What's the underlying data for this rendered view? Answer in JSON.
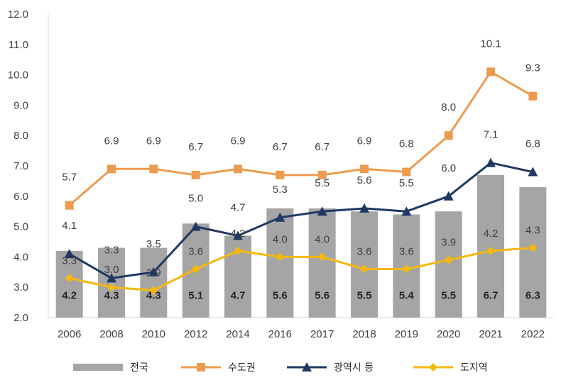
{
  "chart_data": {
    "type": "bar",
    "categories": [
      "2006",
      "2008",
      "2010",
      "2012",
      "2014",
      "2016",
      "2017",
      "2018",
      "2019",
      "2020",
      "2021",
      "2022"
    ],
    "ylim": [
      2.0,
      12.0
    ],
    "y_ticks": [
      "2.0",
      "3.0",
      "4.0",
      "5.0",
      "6.0",
      "7.0",
      "8.0",
      "9.0",
      "10.0",
      "11.0",
      "12.0"
    ],
    "grid": false,
    "legend_position": "bottom",
    "series": [
      {
        "name": "전국",
        "kind": "bar",
        "color": "#A5A5A5",
        "values": [
          4.2,
          4.3,
          4.3,
          5.1,
          4.7,
          5.6,
          5.6,
          5.5,
          5.4,
          5.5,
          6.7,
          6.3
        ],
        "labels": [
          "4.2",
          "4.3",
          "4.3",
          "5.1",
          "4.7",
          "5.6",
          "5.6",
          "5.5",
          "5.4",
          "5.5",
          "6.7",
          "6.3"
        ]
      },
      {
        "name": "수도권",
        "kind": "line",
        "marker": "square",
        "color": "#ED9B4E",
        "values": [
          5.7,
          6.9,
          6.9,
          6.7,
          6.9,
          6.7,
          6.7,
          6.9,
          6.8,
          8.0,
          10.1,
          9.3
        ],
        "labels": [
          "5.7",
          "6.9",
          "6.9",
          "6.7",
          "6.9",
          "6.7",
          "6.7",
          "6.9",
          "6.8",
          "8.0",
          "10.1",
          "9.3"
        ]
      },
      {
        "name": "광역시 등",
        "kind": "line",
        "marker": "triangle",
        "color": "#1F3864",
        "values": [
          4.1,
          3.3,
          3.5,
          5.0,
          4.7,
          5.3,
          5.5,
          5.6,
          5.5,
          6.0,
          7.1,
          6.8
        ],
        "labels": [
          "4.1",
          "3.3",
          "3.5",
          "5.0",
          "4.7",
          "5.3",
          "5.5",
          "5.6",
          "5.5",
          "6.0",
          "7.1",
          "6.8"
        ]
      },
      {
        "name": "도지역",
        "kind": "line",
        "marker": "diamond",
        "color": "#F5B80E",
        "values": [
          3.3,
          3.0,
          2.9,
          3.6,
          4.2,
          4.0,
          4.0,
          3.6,
          3.6,
          3.9,
          4.2,
          4.3
        ],
        "labels": [
          "3.3",
          "3.0",
          "2.9",
          "3.6",
          "4.2",
          "4.0",
          "4.0",
          "3.6",
          "3.6",
          "3.9",
          "4.2",
          "4.3"
        ]
      }
    ]
  }
}
